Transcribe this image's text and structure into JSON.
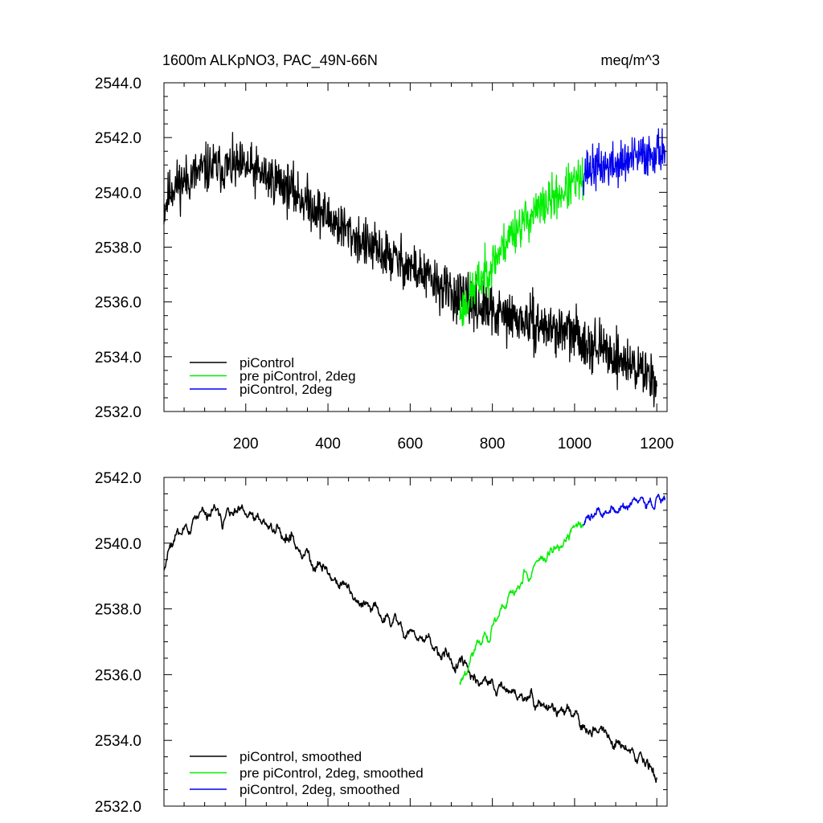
{
  "chart_data": [
    {
      "type": "line",
      "title_left": "1600m ALKpNO3, PAC_49N-66N",
      "title_right": "meq/m^3",
      "xlim": [
        1,
        1225
      ],
      "ylim": [
        2532.0,
        2544.0
      ],
      "x_ticks": [
        200,
        400,
        600,
        800,
        1000,
        1200
      ],
      "x_tick_labels": [
        "200",
        "400",
        "600",
        "800",
        "1000",
        "1200"
      ],
      "y_ticks": [
        2532,
        2534,
        2536,
        2538,
        2540,
        2542,
        2544
      ],
      "y_tick_labels": [
        "2532.0",
        "2534.0",
        "2536.0",
        "2538.0",
        "2540.0",
        "2542.0",
        "2544.0"
      ],
      "smoothed": false,
      "series": [
        {
          "name": "piControl",
          "color": "#000000",
          "x_start": 1,
          "x_end": 1200,
          "anchors": [
            [
              1,
              2539.4
            ],
            [
              20,
              2540.2
            ],
            [
              60,
              2540.5
            ],
            [
              110,
              2540.9
            ],
            [
              200,
              2540.9
            ],
            [
              280,
              2540.4
            ],
            [
              400,
              2539.1
            ],
            [
              500,
              2538.0
            ],
            [
              600,
              2537.3
            ],
            [
              700,
              2536.3
            ],
            [
              800,
              2535.6
            ],
            [
              900,
              2535.2
            ],
            [
              1000,
              2534.8
            ],
            [
              1100,
              2534.0
            ],
            [
              1200,
              2533.2
            ]
          ],
          "noise": 0.45,
          "seed": 11
        },
        {
          "name": "pre piControl, 2deg",
          "color": "#00ee00",
          "x_start": 721,
          "x_end": 1020,
          "anchors": [
            [
              721,
              2535.6
            ],
            [
              760,
              2536.6
            ],
            [
              800,
              2537.4
            ],
            [
              850,
              2538.6
            ],
            [
              900,
              2539.2
            ],
            [
              950,
              2539.8
            ],
            [
              1020,
              2540.5
            ]
          ],
          "noise": 0.4,
          "seed": 23
        },
        {
          "name": "piControl, 2deg",
          "color": "#0000ee",
          "x_start": 1021,
          "x_end": 1220,
          "anchors": [
            [
              1021,
              2540.8
            ],
            [
              1100,
              2541.0
            ],
            [
              1160,
              2541.3
            ],
            [
              1220,
              2541.6
            ]
          ],
          "noise": 0.4,
          "seed": 37
        }
      ]
    },
    {
      "type": "line",
      "xlim": [
        1,
        1225
      ],
      "ylim": [
        2532.0,
        2542.0
      ],
      "y_ticks": [
        2532,
        2534,
        2536,
        2538,
        2540,
        2542
      ],
      "y_tick_labels": [
        "2532.0",
        "2534.0",
        "2536.0",
        "2538.0",
        "2540.0",
        "2542.0"
      ],
      "smoothed": true,
      "series": [
        {
          "name": "piControl, smoothed",
          "color": "#000000",
          "x_start": 1,
          "x_end": 1200,
          "anchors": [
            [
              1,
              2539.3
            ],
            [
              20,
              2540.2
            ],
            [
              60,
              2540.5
            ],
            [
              110,
              2540.9
            ],
            [
              200,
              2540.8
            ],
            [
              280,
              2540.4
            ],
            [
              400,
              2539.1
            ],
            [
              500,
              2538.0
            ],
            [
              600,
              2537.3
            ],
            [
              700,
              2536.4
            ],
            [
              800,
              2535.6
            ],
            [
              900,
              2535.2
            ],
            [
              1000,
              2534.7
            ],
            [
              1100,
              2534.0
            ],
            [
              1200,
              2533.1
            ]
          ],
          "noise": 0.45,
          "seed": 11
        },
        {
          "name": "pre piControl, 2deg, smoothed",
          "color": "#00ee00",
          "x_start": 721,
          "x_end": 1020,
          "anchors": [
            [
              721,
              2535.8
            ],
            [
              760,
              2536.8
            ],
            [
              800,
              2537.5
            ],
            [
              850,
              2538.6
            ],
            [
              900,
              2539.2
            ],
            [
              950,
              2539.8
            ],
            [
              1020,
              2540.6
            ]
          ],
          "noise": 0.4,
          "seed": 23
        },
        {
          "name": "piControl, 2deg, smoothed",
          "color": "#0000ee",
          "x_start": 1021,
          "x_end": 1220,
          "anchors": [
            [
              1021,
              2540.8
            ],
            [
              1100,
              2541.0
            ],
            [
              1160,
              2541.2
            ],
            [
              1220,
              2541.5
            ]
          ],
          "noise": 0.4,
          "seed": 37
        }
      ]
    }
  ]
}
